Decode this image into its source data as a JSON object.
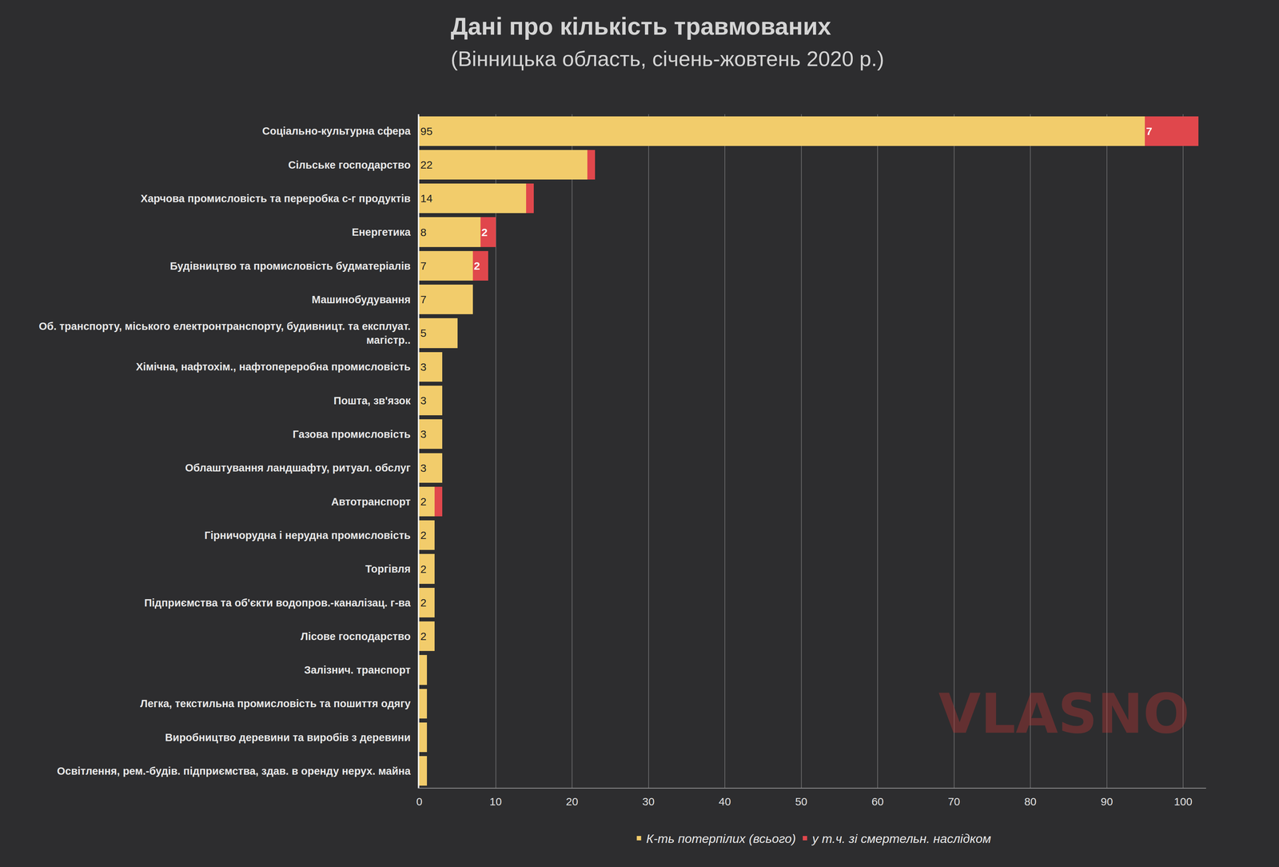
{
  "chart_data": {
    "type": "bar",
    "orientation": "horizontal",
    "stacked": true,
    "data_labels": true,
    "grid": true,
    "legend": "bottom",
    "title": "Дані про кількість травмованих",
    "subtitle": "(Вінницька область, січень-жовтень 2020 р.)",
    "categories": [
      "Соціально-культурна сфера",
      "Сільське господарство",
      "Харчова промисловість та переробка с-г продуктів",
      "Енергетика",
      "Будівництво та промисловість будматеріалів",
      "Машинобудування",
      "Об. транспорту, міського електронтранспорту, будивницт. та експлуат. магістр..",
      "Хімічна, нафтохім., нафтопереробна промисловість",
      "Пошта, зв'язок",
      "Газова промисловість",
      "Облаштування ландшафту, ритуал. обслуг",
      "Автотранспорт",
      "Гірничорудна і нерудна промисловість",
      "Торгівля",
      "Підприємства та об'єкти водопров.-каналізац. г-ва",
      "Лісове господарство",
      "Залізнич. транспорт",
      "Легка, текстильна промисловість та пошиття одягу",
      "Виробництво деревини та виробів з деревини",
      "Освітлення, рем.-будів. підприємства, здав. в оренду нерух. майна"
    ],
    "series": [
      {
        "name": "К-ть потерпілих (всього)",
        "color": "#F2CC6B",
        "values": [
          95,
          22,
          14,
          8,
          7,
          7,
          5,
          3,
          3,
          3,
          3,
          2,
          2,
          2,
          2,
          2,
          1,
          1,
          1,
          1
        ],
        "value_labels": [
          "95",
          "22",
          "14",
          "8",
          "7",
          "7",
          "5",
          "3",
          "3",
          "3",
          "3",
          "2",
          "2",
          "2",
          "2",
          "2",
          null,
          null,
          null,
          null
        ]
      },
      {
        "name": "у т.ч. зі смертельн. наслідком",
        "color": "#E0474C",
        "values": [
          7,
          1,
          1,
          2,
          2,
          0,
          0,
          0,
          0,
          0,
          0,
          1,
          0,
          0,
          0,
          0,
          0,
          0,
          0,
          0
        ],
        "value_labels": [
          "7",
          null,
          null,
          "2",
          "2",
          null,
          null,
          null,
          null,
          null,
          null,
          null,
          null,
          null,
          null,
          null,
          null,
          null,
          null,
          null
        ]
      }
    ],
    "xlim": [
      0,
      103
    ],
    "xticks": [
      0,
      10,
      20,
      30,
      40,
      50,
      60,
      70,
      80,
      90,
      100
    ],
    "annotations": [
      {
        "text": "VLASNO"
      }
    ]
  }
}
